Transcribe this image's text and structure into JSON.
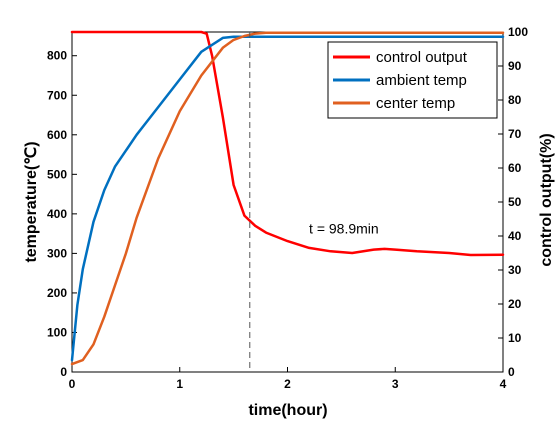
{
  "chart_data": {
    "type": "line",
    "title": "",
    "xlabel": "time(hour)",
    "ylabel_left": "temperature(℃)",
    "ylabel_right": "control output(%)",
    "xlim": [
      0,
      4
    ],
    "ylim_left": [
      0,
      860
    ],
    "ylim_right": [
      0,
      100
    ],
    "x_ticks": [
      0,
      1,
      2,
      3,
      4
    ],
    "x_tick_labels": [
      "0",
      "1",
      "2",
      "3",
      "4"
    ],
    "y_left_ticks": [
      0,
      100,
      200,
      300,
      400,
      500,
      600,
      700,
      800
    ],
    "y_left_tick_labels": [
      "0",
      "100",
      "200",
      "300",
      "400",
      "500",
      "600",
      "700",
      "800"
    ],
    "y_right_ticks": [
      0,
      10,
      20,
      30,
      40,
      50,
      60,
      70,
      80,
      90,
      100
    ],
    "y_right_tick_labels": [
      "0",
      "10",
      "20",
      "30",
      "40",
      "50",
      "60",
      "70",
      "80",
      "90",
      "100"
    ],
    "grid": false,
    "legend_position": "top-right",
    "series": [
      {
        "name": "control output",
        "axis": "right",
        "color": "#ff0000",
        "x": [
          0,
          0.5,
          1.0,
          1.2,
          1.25,
          1.3,
          1.4,
          1.5,
          1.6,
          1.7,
          1.8,
          2.0,
          2.2,
          2.4,
          2.6,
          2.8,
          2.9,
          3.0,
          3.2,
          3.5,
          3.7,
          4.0
        ],
        "y": [
          100,
          100,
          100,
          100,
          99.5,
          93,
          75,
          55,
          46,
          43,
          41,
          38.5,
          36.5,
          35.5,
          35,
          36,
          36.2,
          36,
          35.5,
          35,
          34.4,
          34.5
        ]
      },
      {
        "name": "ambient temp",
        "axis": "left",
        "color": "#0070c0",
        "x": [
          0,
          0.05,
          0.1,
          0.2,
          0.3,
          0.4,
          0.5,
          0.6,
          0.8,
          1.0,
          1.2,
          1.4,
          1.5,
          1.6,
          1.7,
          2.0,
          3.0,
          4.0
        ],
        "y": [
          30,
          170,
          260,
          380,
          460,
          520,
          560,
          600,
          670,
          740,
          810,
          845,
          848,
          848,
          848,
          848,
          848,
          848
        ]
      },
      {
        "name": "center temp",
        "axis": "left",
        "color": "#e06020",
        "x": [
          0,
          0.1,
          0.2,
          0.3,
          0.4,
          0.5,
          0.6,
          0.8,
          1.0,
          1.2,
          1.4,
          1.5,
          1.6,
          1.7,
          1.8,
          2.0,
          3.0,
          4.0
        ],
        "y": [
          20,
          30,
          70,
          140,
          220,
          300,
          390,
          540,
          660,
          750,
          820,
          840,
          850,
          856,
          858,
          858,
          858,
          858
        ]
      }
    ],
    "annotations": [
      {
        "type": "vline",
        "x": 1.65,
        "style": "dashed",
        "color": "#555555"
      },
      {
        "type": "text",
        "text": "t = 98.9min",
        "x": 2.2,
        "y_left": 350
      }
    ]
  }
}
